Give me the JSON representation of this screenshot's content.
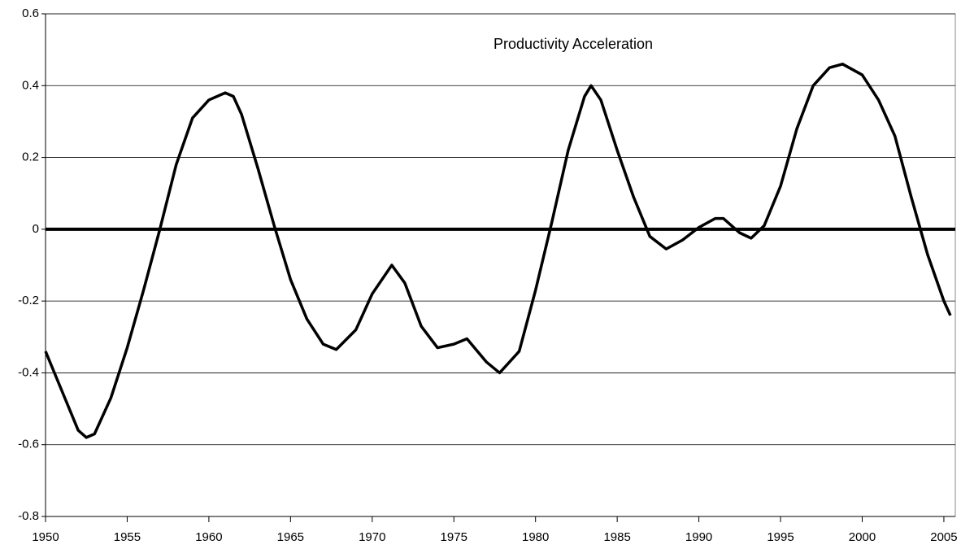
{
  "chart_data": {
    "type": "line",
    "title": "Productivity Acceleration",
    "x": [
      1950,
      1951,
      1952,
      1952.5,
      1953,
      1954,
      1955,
      1956,
      1957,
      1958,
      1959,
      1960,
      1961,
      1961.5,
      1962,
      1963,
      1964,
      1965,
      1966,
      1967,
      1967.8,
      1969,
      1970,
      1971.2,
      1972,
      1973,
      1974,
      1975,
      1975.8,
      1977,
      1977.8,
      1979,
      1980,
      1981,
      1982,
      1983,
      1983.4,
      1984,
      1985,
      1986,
      1987,
      1988,
      1989,
      1990,
      1991,
      1991.5,
      1992.5,
      1993.2,
      1994,
      1995,
      1996,
      1997,
      1998,
      1998.8,
      2000,
      2001,
      2002,
      2003,
      2004,
      2005,
      2005.4
    ],
    "series": [
      {
        "name": "Productivity Acceleration",
        "color": "#000000",
        "values": [
          -0.34,
          -0.45,
          -0.56,
          -0.58,
          -0.57,
          -0.47,
          -0.33,
          -0.17,
          0.0,
          0.18,
          0.31,
          0.36,
          0.38,
          0.37,
          0.32,
          0.17,
          0.01,
          -0.14,
          -0.25,
          -0.32,
          -0.335,
          -0.28,
          -0.18,
          -0.1,
          -0.15,
          -0.27,
          -0.33,
          -0.32,
          -0.305,
          -0.37,
          -0.4,
          -0.34,
          -0.17,
          0.02,
          0.22,
          0.37,
          0.4,
          0.36,
          0.22,
          0.09,
          -0.02,
          -0.055,
          -0.03,
          0.005,
          0.03,
          0.03,
          -0.01,
          -0.025,
          0.01,
          0.12,
          0.28,
          0.4,
          0.45,
          0.46,
          0.43,
          0.36,
          0.26,
          0.09,
          -0.07,
          -0.2,
          -0.24
        ]
      }
    ],
    "xlim": [
      1950,
      2005.7
    ],
    "xticks": [
      1950,
      1955,
      1960,
      1965,
      1970,
      1975,
      1980,
      1985,
      1990,
      1995,
      2000,
      2005
    ],
    "ylim": [
      -0.8,
      0.6
    ],
    "yticks": [
      -0.8,
      -0.6,
      -0.4,
      -0.2,
      0,
      0.2,
      0.4,
      0.6
    ],
    "grid": true
  }
}
